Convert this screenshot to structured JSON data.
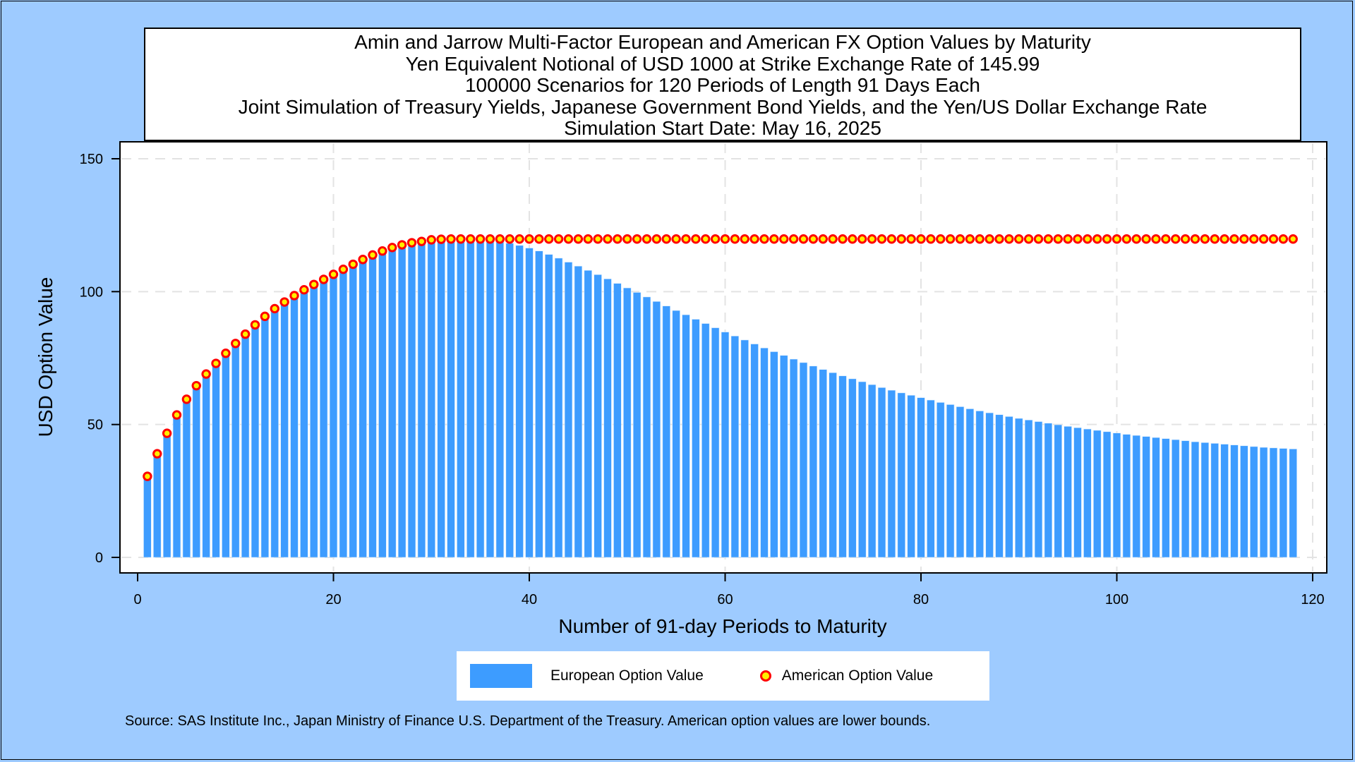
{
  "title_lines": [
    "Amin and Jarrow Multi-Factor European and American FX Option Values by Maturity",
    "Yen Equivalent Notional of USD 1000 at Strike Exchange Rate of 145.99",
    "100000 Scenarios for 120 Periods of Length 91 Days Each",
    "Joint Simulation of Treasury Yields, Japanese Government Bond Yields, and the Yen/US Dollar Exchange Rate",
    "Simulation Start Date: May 16, 2025"
  ],
  "source_note": "Source: SAS Institute Inc., Japan Ministry of Finance U.S. Department of the Treasury. American option values are lower bounds.",
  "colors": {
    "european_bar": "#3d9cff",
    "american_marker_fill": "#ffee00",
    "american_marker_edge": "#ff0000",
    "background": "#9ecbff"
  },
  "chart_data": {
    "type": "bar",
    "xlabel": "Number of 91-day Periods to Maturity",
    "ylabel": "USD Option Value",
    "xlim": [
      0,
      120
    ],
    "ylim": [
      0,
      150
    ],
    "xticks": [
      0,
      20,
      40,
      60,
      80,
      100,
      120
    ],
    "yticks": [
      0,
      50,
      100,
      150
    ],
    "grid": true,
    "legend_position": "bottom",
    "x": [
      1,
      2,
      3,
      4,
      5,
      6,
      7,
      8,
      9,
      10,
      11,
      12,
      13,
      14,
      15,
      16,
      17,
      18,
      19,
      20,
      21,
      22,
      23,
      24,
      25,
      26,
      27,
      28,
      29,
      30,
      31,
      32,
      33,
      34,
      35,
      36,
      37,
      38,
      39,
      40,
      41,
      42,
      43,
      44,
      45,
      46,
      47,
      48,
      49,
      50,
      51,
      52,
      53,
      54,
      55,
      56,
      57,
      58,
      59,
      60,
      61,
      62,
      63,
      64,
      65,
      66,
      67,
      68,
      69,
      70,
      71,
      72,
      73,
      74,
      75,
      76,
      77,
      78,
      79,
      80,
      81,
      82,
      83,
      84,
      85,
      86,
      87,
      88,
      89,
      90,
      91,
      92,
      93,
      94,
      95,
      96,
      97,
      98,
      99,
      100,
      101,
      102,
      103,
      104,
      105,
      106,
      107,
      108,
      109,
      110,
      111,
      112,
      113,
      114,
      115,
      116,
      117,
      118
    ],
    "series": [
      {
        "name": "European Option Value",
        "kind": "bar",
        "values": [
          30.1,
          38.8,
          46.5,
          53.4,
          59.3,
          64.4,
          68.8,
          72.8,
          76.6,
          80.3,
          83.8,
          87.3,
          90.5,
          93.4,
          95.9,
          98.3,
          100.5,
          102.5,
          104.4,
          106.3,
          108.2,
          110.1,
          111.9,
          113.6,
          115.1,
          116.4,
          117.4,
          118.2,
          118.7,
          119.0,
          119.2,
          119.3,
          119.3,
          119.2,
          119.1,
          119.0,
          118.7,
          118.2,
          117.4,
          116.4,
          115.3,
          114.0,
          112.6,
          111.1,
          109.6,
          108.0,
          106.4,
          104.8,
          103.1,
          101.4,
          99.7,
          98.0,
          96.3,
          94.6,
          92.9,
          91.3,
          89.6,
          88.0,
          86.4,
          84.8,
          83.3,
          81.8,
          80.3,
          78.8,
          77.4,
          76.0,
          74.6,
          73.3,
          72.0,
          70.7,
          69.5,
          68.3,
          67.2,
          66.1,
          65.0,
          63.9,
          62.9,
          61.9,
          61.0,
          60.1,
          59.2,
          58.3,
          57.5,
          56.7,
          55.9,
          55.1,
          54.4,
          53.7,
          53.0,
          52.3,
          51.7,
          51.1,
          50.5,
          49.9,
          49.3,
          48.8,
          48.3,
          47.8,
          47.3,
          46.8,
          46.3,
          45.9,
          45.5,
          45.1,
          44.7,
          44.3,
          43.9,
          43.5,
          43.2,
          42.9,
          42.6,
          42.3,
          42.0,
          41.7,
          41.4,
          41.2,
          41.0,
          40.8
        ]
      },
      {
        "name": "American Option Value",
        "kind": "marker",
        "values": [
          30.5,
          39.0,
          46.7,
          53.6,
          59.5,
          64.6,
          69.0,
          73.0,
          76.8,
          80.5,
          84.0,
          87.5,
          90.7,
          93.6,
          96.1,
          98.5,
          100.7,
          102.7,
          104.6,
          106.5,
          108.4,
          110.3,
          112.1,
          113.8,
          115.3,
          116.6,
          117.6,
          118.4,
          118.9,
          119.5,
          119.7,
          119.8,
          119.8,
          119.8,
          119.8,
          119.8,
          119.8,
          119.8,
          119.8,
          119.8,
          119.8,
          119.8,
          119.8,
          119.8,
          119.8,
          119.8,
          119.8,
          119.8,
          119.8,
          119.8,
          119.8,
          119.8,
          119.8,
          119.8,
          119.8,
          119.8,
          119.8,
          119.8,
          119.8,
          119.8,
          119.8,
          119.8,
          119.8,
          119.8,
          119.8,
          119.8,
          119.8,
          119.8,
          119.8,
          119.8,
          119.8,
          119.8,
          119.8,
          119.8,
          119.8,
          119.8,
          119.8,
          119.8,
          119.8,
          119.8,
          119.8,
          119.8,
          119.8,
          119.8,
          119.8,
          119.8,
          119.8,
          119.8,
          119.8,
          119.8,
          119.8,
          119.8,
          119.8,
          119.8,
          119.8,
          119.8,
          119.8,
          119.8,
          119.8,
          119.8,
          119.8,
          119.8,
          119.8,
          119.8,
          119.8,
          119.8,
          119.8,
          119.8,
          119.8,
          119.8,
          119.8,
          119.8,
          119.8,
          119.8,
          119.8,
          119.8,
          119.8,
          119.8
        ]
      }
    ]
  }
}
